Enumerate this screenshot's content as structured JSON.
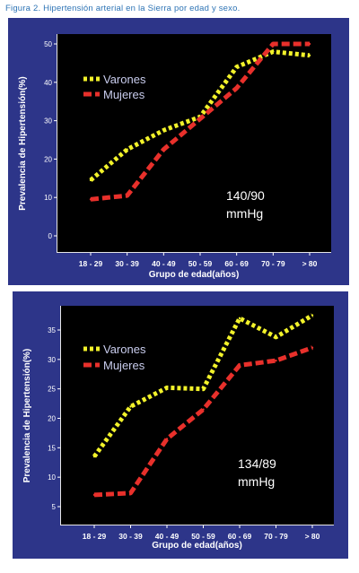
{
  "caption": "Figura 2. Hipertensión arterial en la Sierra por edad y sexo.",
  "colors": {
    "panel_bg": "#2d3589",
    "plot_bg": "#000000",
    "varones": "#f2f22a",
    "mujeres": "#e8302b",
    "caption": "#2e74b5"
  },
  "chart_data": [
    {
      "type": "line",
      "categories": [
        "18 - 29",
        "30 - 39",
        "40 - 49",
        "50 - 59",
        "60 - 69",
        "70 - 79",
        "> 80"
      ],
      "series": [
        {
          "name": "Varones",
          "values": [
            14.5,
            22.5,
            27.5,
            31,
            44,
            48,
            47
          ]
        },
        {
          "name": "Mujeres",
          "values": [
            9.5,
            10.5,
            22.5,
            30.5,
            38.5,
            50,
            50
          ]
        }
      ],
      "xlabel": "Grupo de edad(años)",
      "ylabel": "Prevalencia de Hipertensión(%)",
      "ylim": [
        0,
        50
      ],
      "yticks": [
        0,
        10,
        20,
        30,
        40,
        50
      ],
      "annotation": [
        "140/90",
        "mmHg"
      ],
      "legend": "top-left",
      "grid": false
    },
    {
      "type": "line",
      "categories": [
        "18 - 29",
        "30 - 39",
        "40 - 49",
        "50 - 59",
        "60 - 69",
        "70 - 79",
        "> 80"
      ],
      "series": [
        {
          "name": "Varones",
          "values": [
            13.5,
            22,
            25.2,
            25,
            37,
            33.8,
            37.5
          ]
        },
        {
          "name": "Mujeres",
          "values": [
            7,
            7.3,
            16.5,
            21.5,
            29,
            29.8,
            32
          ]
        }
      ],
      "xlabel": "Grupo de edad(años)",
      "ylabel": "Prevalencia de Hipertensión(%)",
      "ylim": [
        5,
        35
      ],
      "yticks": [
        5,
        10,
        15,
        20,
        25,
        30,
        35
      ],
      "annotation": [
        "134/89",
        "mmHg"
      ],
      "legend": "top-left",
      "grid": false
    }
  ]
}
